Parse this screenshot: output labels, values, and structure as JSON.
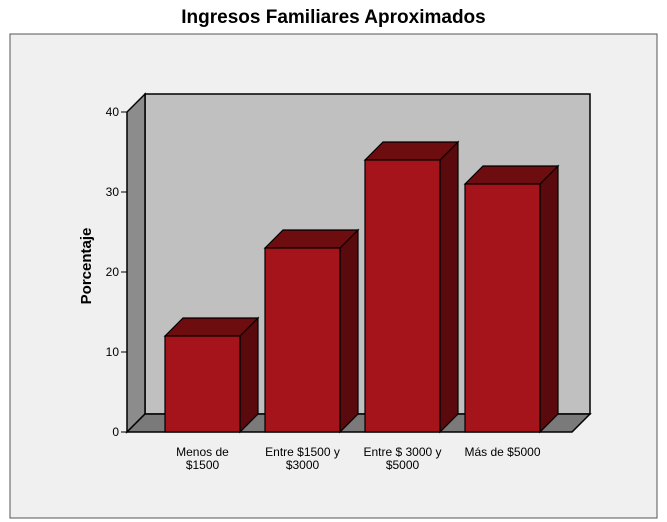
{
  "chart_data": {
    "type": "bar",
    "title": "Ingresos Familiares Aproximados",
    "xlabel": "",
    "ylabel": "Porcentaje",
    "categories": [
      [
        "Menos de",
        "$1500"
      ],
      [
        "Entre $1500 y",
        "$3000"
      ],
      [
        "Entre $ 3000 y",
        "$5000"
      ],
      [
        "Más de $5000"
      ]
    ],
    "values": [
      12,
      23,
      34,
      31
    ],
    "ylim": [
      0,
      40
    ],
    "yticks": [
      0,
      10,
      20,
      30,
      40
    ],
    "grid": false,
    "three_d": true,
    "colors": {
      "bar_front": "#a6141b",
      "bar_top": "#6e0d10",
      "bar_side": "#5a0a0c",
      "back_wall": "#c0c0c0",
      "side_wall": "#8c8c8c",
      "floor": "#7a7a7a",
      "frame_bg": "#f0f0f0"
    }
  }
}
